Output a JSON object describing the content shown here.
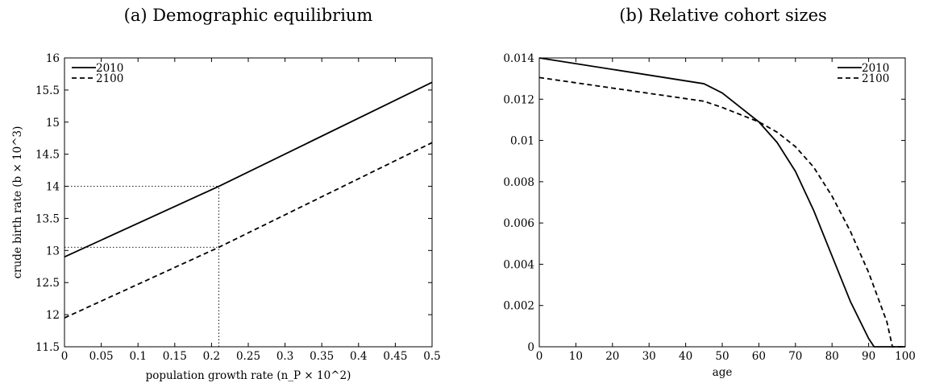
{
  "chart_data": [
    {
      "type": "line",
      "title": "(a) Demographic equilibrium",
      "xlabel": "population growth rate (n_P × 10^2)",
      "ylabel": "crude birth rate (b × 10^3)",
      "xlim": [
        0,
        0.5
      ],
      "ylim": [
        11.5,
        16
      ],
      "x_ticks": [
        "0",
        "0.05",
        "0.1",
        "0.15",
        "0.2",
        "0.25",
        "0.3",
        "0.35",
        "0.4",
        "0.45",
        "0.5"
      ],
      "y_ticks": [
        "11.5",
        "12",
        "12.5",
        "13",
        "13.5",
        "14",
        "14.5",
        "15",
        "15.5",
        "16"
      ],
      "legend_position": "top-left",
      "grid": false,
      "series": [
        {
          "name": "2010",
          "style": "solid",
          "x": [
            0,
            0.21,
            0.5
          ],
          "y": [
            12.9,
            14.0,
            15.62
          ]
        },
        {
          "name": "2100",
          "style": "dashed",
          "x": [
            0,
            0.21,
            0.5
          ],
          "y": [
            11.95,
            13.05,
            14.68
          ]
        }
      ],
      "reference_lines": {
        "x": 0.21,
        "y": [
          14.0,
          13.05
        ],
        "style": "dotted"
      }
    },
    {
      "type": "line",
      "title": "(b) Relative cohort sizes",
      "xlabel": "age",
      "ylabel": "",
      "xlim": [
        0,
        100
      ],
      "ylim": [
        0,
        0.014
      ],
      "x_ticks": [
        "0",
        "10",
        "20",
        "30",
        "40",
        "50",
        "60",
        "70",
        "80",
        "90",
        "100"
      ],
      "y_ticks": [
        "0",
        "0.002",
        "0.004",
        "0.006",
        "0.008",
        "0.01",
        "0.012",
        "0.014"
      ],
      "legend_position": "top-right",
      "grid": false,
      "series": [
        {
          "name": "2010",
          "style": "solid",
          "x": [
            0,
            45,
            50,
            55,
            60,
            65,
            70,
            75,
            80,
            85,
            90,
            91.5,
            100
          ],
          "y": [
            0.014,
            0.01275,
            0.0123,
            0.0116,
            0.0109,
            0.0099,
            0.0085,
            0.0066,
            0.0044,
            0.0022,
            0.0004,
            0,
            0
          ]
        },
        {
          "name": "2100",
          "style": "dashed",
          "x": [
            0,
            45,
            50,
            55,
            60,
            65,
            70,
            75,
            80,
            85,
            90,
            95,
            96.5,
            100
          ],
          "y": [
            0.01305,
            0.0119,
            0.0116,
            0.01125,
            0.0109,
            0.0104,
            0.0097,
            0.0087,
            0.0073,
            0.0056,
            0.0036,
            0.0012,
            0,
            0
          ]
        }
      ]
    }
  ]
}
